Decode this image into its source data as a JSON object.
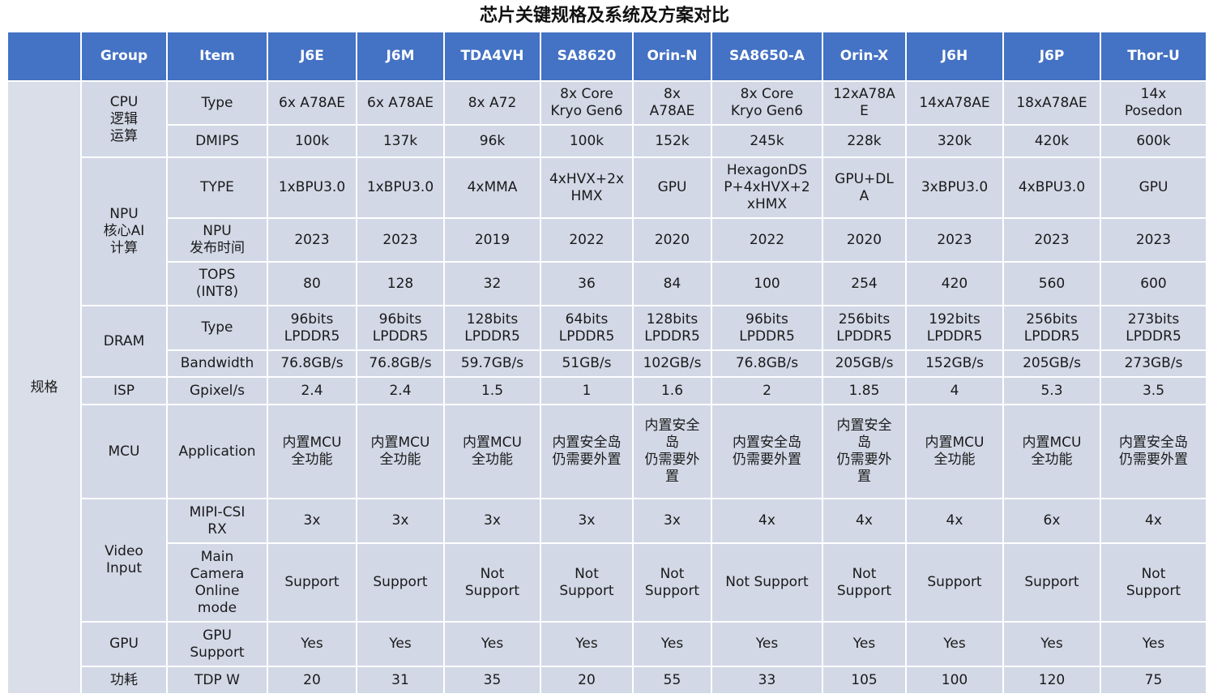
{
  "title": "芯片关键规格及系统及方案对比",
  "header": {
    "group": "Group",
    "item": "Item",
    "chips": [
      "J6E",
      "J6M",
      "TDA4VH",
      "SA8620",
      "Orin-N",
      "SA8650-A",
      "Orin-X",
      "J6H",
      "J6P",
      "Thor-U"
    ]
  },
  "spec_label": "规格",
  "groups": {
    "cpu": "CPU\n逻辑\n运算",
    "npu": "NPU\n核心AI\n计算",
    "dram": "DRAM",
    "isp": "ISP",
    "mcu": "MCU",
    "video": "Video\nInput",
    "gpu": "GPU",
    "power": "功耗"
  },
  "rows": [
    {
      "item": "Type",
      "values": [
        "6x A78AE",
        "6x A78AE",
        "8x A72",
        "8x Core\nKryo Gen6",
        "8x\nA78AE",
        "8x Core\nKryo Gen6",
        "12xA78A\nE",
        "14xA78AE",
        "18xA78AE",
        "14x\nPosedon"
      ]
    },
    {
      "item": "DMIPS",
      "values": [
        "100k",
        "137k",
        "96k",
        "100k",
        "152k",
        "245k",
        "228k",
        "320k",
        "420k",
        "600k"
      ]
    },
    {
      "item": "TYPE",
      "values": [
        "1xBPU3.0",
        "1xBPU3.0",
        "4xMMA",
        "4xHVX+2x\nHMX",
        "GPU",
        "HexagonDS\nP+4xHVX+2\nxHMX",
        "GPU+DL\nA",
        "3xBPU3.0",
        "4xBPU3.0",
        "GPU"
      ]
    },
    {
      "item": "NPU\n发布时间",
      "values": [
        "2023",
        "2023",
        "2019",
        "2022",
        "2020",
        "2022",
        "2020",
        "2023",
        "2023",
        "2023"
      ]
    },
    {
      "item": "TOPS\n(INT8)",
      "values": [
        "80",
        "128",
        "32",
        "36",
        "84",
        "100",
        "254",
        "420",
        "560",
        "600"
      ]
    },
    {
      "item": "Type",
      "values": [
        "96bits\nLPDDR5",
        "96bits\nLPDDR5",
        "128bits\nLPDDR5",
        "64bits\nLPDDR5",
        "128bits\nLPDDR5",
        "96bits\nLPDDR5",
        "256bits\nLPDDR5",
        "192bits\nLPDDR5",
        "256bits\nLPDDR5",
        "273bits\nLPDDR5"
      ]
    },
    {
      "item": "Bandwidth",
      "values": [
        "76.8GB/s",
        "76.8GB/s",
        "59.7GB/s",
        "51GB/s",
        "102GB/s",
        "76.8GB/s",
        "205GB/s",
        "152GB/s",
        "205GB/s",
        "273GB/s"
      ]
    },
    {
      "item": "Gpixel/s",
      "values": [
        "2.4",
        "2.4",
        "1.5",
        "1",
        "1.6",
        "2",
        "1.85",
        "4",
        "5.3",
        "3.5"
      ]
    },
    {
      "item": "Application",
      "values": [
        "内置MCU\n全功能",
        "内置MCU\n全功能",
        "内置MCU\n全功能",
        "内置安全岛\n仍需要外置",
        "内置安全\n岛\n仍需要外\n置",
        "内置安全岛\n仍需要外置",
        "内置安全\n岛\n仍需要外\n置",
        "内置MCU\n全功能",
        "内置MCU\n全功能",
        "内置安全岛\n仍需要外置"
      ]
    },
    {
      "item": "MIPI-CSI\nRX",
      "values": [
        "3x",
        "3x",
        "3x",
        "3x",
        "3x",
        "4x",
        "4x",
        "4x",
        "6x",
        "4x"
      ]
    },
    {
      "item": "Main\nCamera\nOnline\nmode",
      "values": [
        "Support",
        "Support",
        "Not\nSupport",
        "Not\nSupport",
        "Not\nSupport",
        "Not Support",
        "Not\nSupport",
        "Support",
        "Support",
        "Not\nSupport"
      ]
    },
    {
      "item": "GPU\nSupport",
      "values": [
        "Yes",
        "Yes",
        "Yes",
        "Yes",
        "Yes",
        "Yes",
        "Yes",
        "Yes",
        "Yes",
        "Yes"
      ]
    },
    {
      "item": "TDP W",
      "values": [
        "20",
        "31",
        "35",
        "20",
        "55",
        "33",
        "105",
        "100",
        "120",
        "75"
      ]
    }
  ]
}
